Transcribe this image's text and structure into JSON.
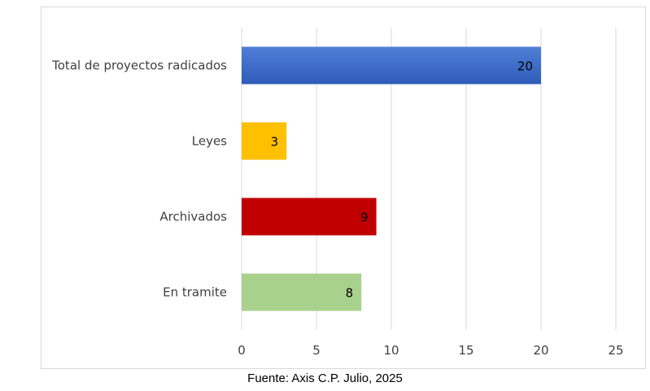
{
  "chart_data": {
    "type": "bar",
    "orientation": "horizontal",
    "categories": [
      "Total de proyectos radicados",
      "Leyes",
      "Archivados",
      "En tramite"
    ],
    "values": [
      20,
      3,
      9,
      8
    ],
    "colors": [
      "#3a66c4",
      "#ffc000",
      "#c00000",
      "#a9d18e"
    ],
    "xlim": [
      0,
      25
    ],
    "xticks": [
      0,
      5,
      10,
      15,
      20,
      25
    ],
    "xtick_labels": [
      "0",
      "5",
      "10",
      "15",
      "20",
      "25"
    ],
    "data_labels": [
      "20",
      "3",
      "9",
      "8"
    ],
    "grid": true,
    "legend": "none"
  },
  "source_note": "Fuente: Axis C.P. Julio, 2025"
}
